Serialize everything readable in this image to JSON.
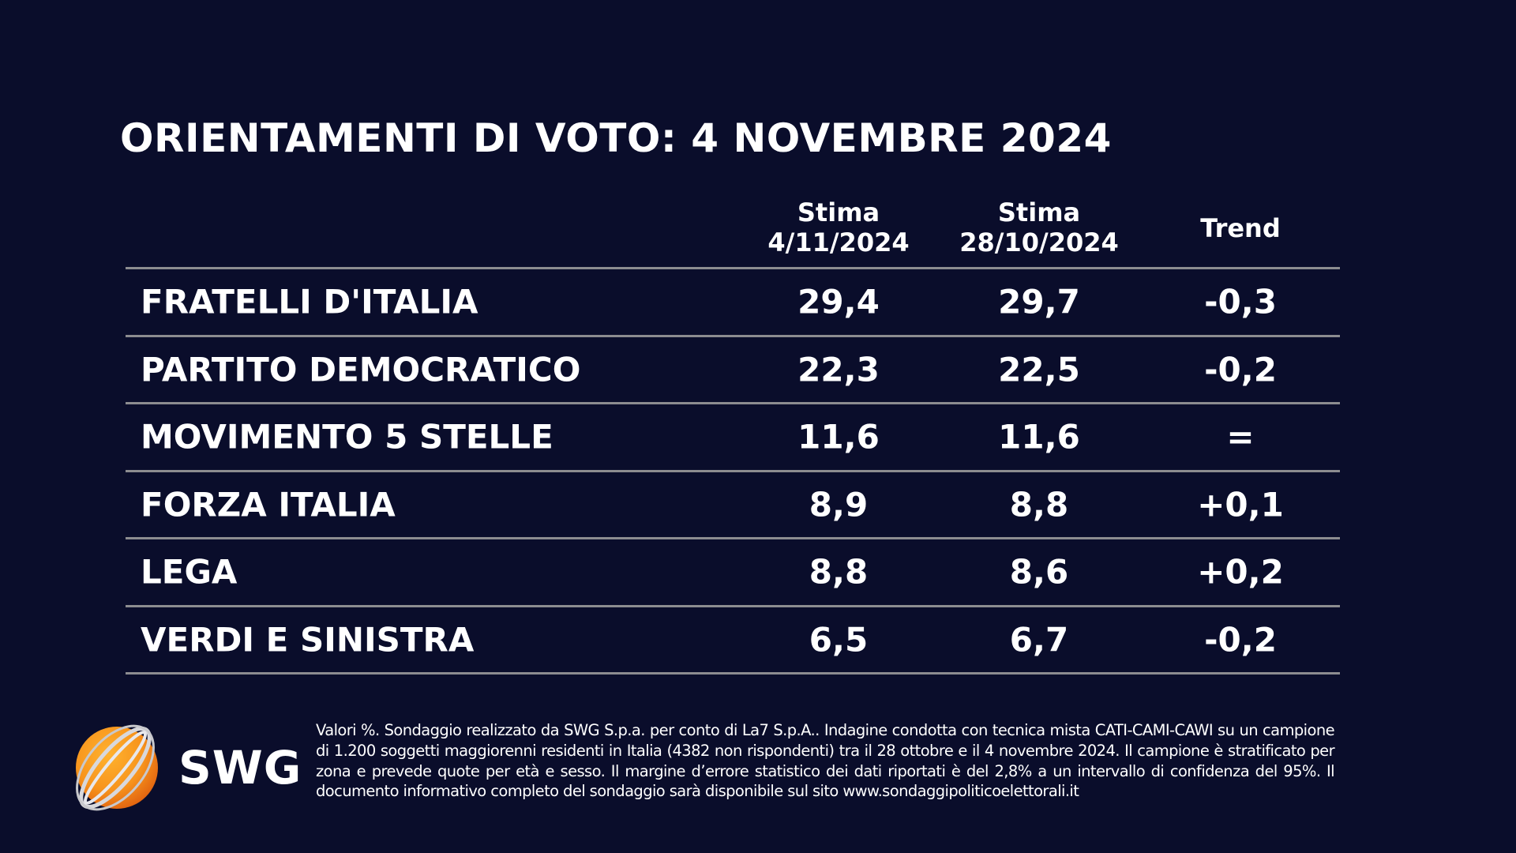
{
  "title": "ORIENTAMENTI DI VOTO: 4 NOVEMBRE 2024",
  "table": {
    "headers": [
      {
        "line1": "Stima",
        "line2": "4/11/2024"
      },
      {
        "line1": "Stima",
        "line2": "28/10/2024"
      },
      {
        "line1": "Trend",
        "line2": ""
      }
    ],
    "rows": [
      {
        "party": "FRATELLI D'ITALIA",
        "current": "29,4",
        "previous": "29,7",
        "trend": "-0,3"
      },
      {
        "party": "PARTITO DEMOCRATICO",
        "current": "22,3",
        "previous": "22,5",
        "trend": "-0,2"
      },
      {
        "party": "MOVIMENTO 5 STELLE",
        "current": "11,6",
        "previous": "11,6",
        "trend": "="
      },
      {
        "party": "FORZA ITALIA",
        "current": "8,9",
        "previous": "8,8",
        "trend": "+0,1"
      },
      {
        "party": "LEGA",
        "current": "8,8",
        "previous": "8,6",
        "trend": "+0,2"
      },
      {
        "party": "VERDI E SINISTRA",
        "current": "6,5",
        "previous": "6,7",
        "trend": "-0,2"
      }
    ]
  },
  "footer": {
    "logo_text": "SWG",
    "note": "Valori %. Sondaggio realizzato da SWG S.p.a. per conto di La7 S.p.A.. Indagine condotta con tecnica mista CATI-CAMI-CAWI su un campione di 1.200 soggetti maggiorenni residenti in Italia (4382 non rispondenti) tra il 28 ottobre e il 4 novembre 2024. Il campione è stratificato per zona e prevede quote per età e sesso. Il margine d’errore statistico dei dati riportati è del 2,8% a un intervallo di confidenza del 95%. Il documento informativo completo del sondaggio sarà disponibile sul sito www.sondaggipoliticoelettorali.it"
  },
  "colors": {
    "background": "#0a0d2b",
    "rule": "#8c8c90",
    "logo_orange": "#f7941d"
  }
}
